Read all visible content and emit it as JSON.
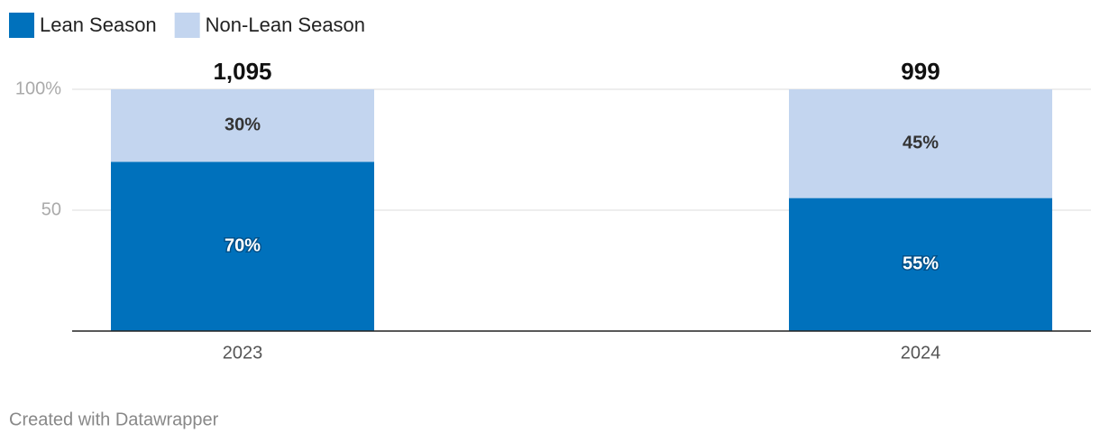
{
  "chart_data": {
    "type": "bar",
    "stacked": true,
    "categories": [
      "2023",
      "2024"
    ],
    "series": [
      {
        "name": "Lean Season",
        "color": "#0071bc",
        "values": [
          70,
          55
        ],
        "value_labels": [
          "70%",
          "55%"
        ]
      },
      {
        "name": "Non-Lean Season",
        "color": "#c3d5ef",
        "values": [
          30,
          45
        ],
        "value_labels": [
          "30%",
          "45%"
        ]
      }
    ],
    "totals": {
      "values": [
        1095,
        999
      ],
      "value_labels": [
        "1,095",
        "999"
      ]
    },
    "ylim": [
      0,
      100
    ],
    "yticks": [
      50,
      {
        "value": 100,
        "label": "100%"
      }
    ],
    "grid": true,
    "legend": "top-left",
    "credit": "Created with Datawrapper"
  }
}
